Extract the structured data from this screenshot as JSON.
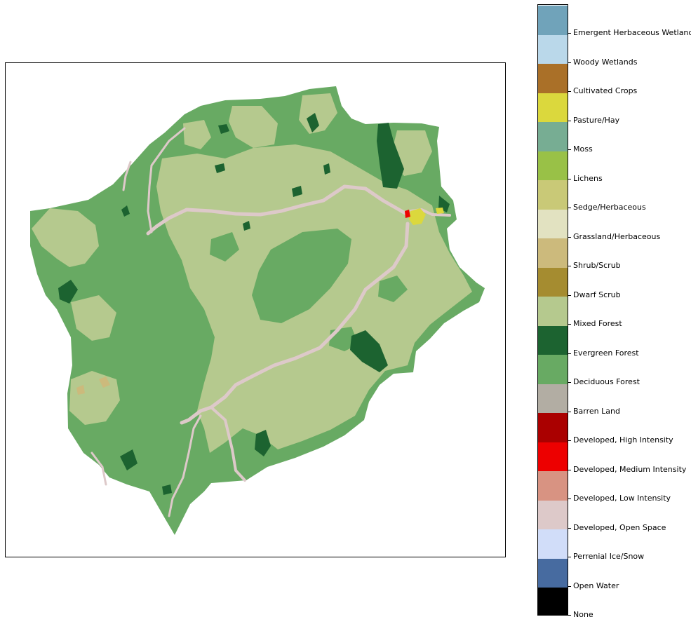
{
  "legend": {
    "categories": [
      {
        "label": "None",
        "color": "#000000"
      },
      {
        "label": "Open Water",
        "color": "#476ba0"
      },
      {
        "label": "Perrenial Ice/Snow",
        "color": "#d1ddf9"
      },
      {
        "label": "Developed, Open Space",
        "color": "#ddc9c9"
      },
      {
        "label": "Developed, Low Intensity",
        "color": "#d89382"
      },
      {
        "label": "Developed, Medium Intensity",
        "color": "#ed0000"
      },
      {
        "label": "Developed, High Intensity",
        "color": "#aa0000"
      },
      {
        "label": "Barren Land",
        "color": "#b2ada3"
      },
      {
        "label": "Deciduous Forest",
        "color": "#68aa63"
      },
      {
        "label": "Evergreen Forest",
        "color": "#1c6330"
      },
      {
        "label": "Mixed Forest",
        "color": "#b5c98e"
      },
      {
        "label": "Dwarf Scrub",
        "color": "#a58c30"
      },
      {
        "label": "Shrub/Scrub",
        "color": "#ccba7c"
      },
      {
        "label": "Grassland/Herbaceous",
        "color": "#e2e2c1"
      },
      {
        "label": "Sedge/Herbaceous",
        "color": "#c9c977"
      },
      {
        "label": "Lichens",
        "color": "#99c147"
      },
      {
        "label": "Moss",
        "color": "#77ad93"
      },
      {
        "label": "Pasture/Hay",
        "color": "#dbd83d"
      },
      {
        "label": "Cultivated Crops",
        "color": "#aa7028"
      },
      {
        "label": "Woody Wetlands",
        "color": "#bad8ea"
      },
      {
        "label": "Emergent Herbaceous Wetlands",
        "color": "#70a3ba"
      }
    ]
  },
  "map": {
    "base_color": "#68aa63",
    "mixed_color": "#b5c98e",
    "evergreen_color": "#1c6330",
    "developed_open_color": "#ddc9c9",
    "pasture_color": "#dbd83d",
    "developed_medium_color": "#ed0000",
    "shrub_color": "#ccba7c"
  }
}
